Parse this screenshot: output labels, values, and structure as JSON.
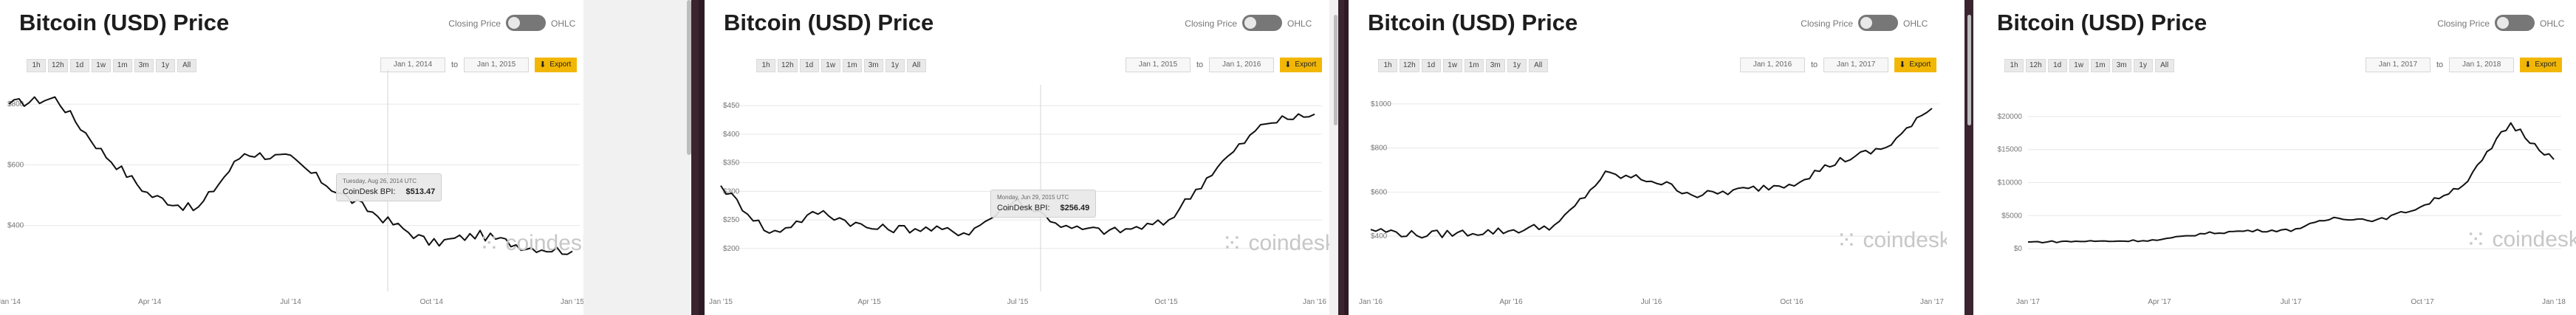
{
  "toolbar": {
    "closing_label": "Closing Price",
    "ohlc_label": "OHLC",
    "to_label": "to",
    "export_label": "Export",
    "ranges": [
      "1h",
      "12h",
      "1d",
      "1w",
      "1m",
      "3m",
      "1y",
      "All"
    ]
  },
  "brand": "coindesk",
  "colors": {
    "line": "#111111",
    "export": "#f2b705",
    "frame": "#2e1a25",
    "grid": "#e7e7e7"
  },
  "panels": [
    {
      "title": "Bitcoin (USD) Price",
      "date_from": "Jan 1, 2014",
      "date_to": "Jan 1, 2015",
      "tooltip": {
        "date": "Tuesday, Aug 26, 2014 UTC",
        "label": "CoinDesk BPI:",
        "value": "$513.47"
      }
    },
    {
      "title": "Bitcoin (USD) Price",
      "date_from": "Jan 1, 2015",
      "date_to": "Jan 1, 2016",
      "tooltip": {
        "date": "Monday, Jun 29, 2015 UTC",
        "label": "CoinDesk BPI:",
        "value": "$256.49"
      }
    },
    {
      "title": "Bitcoin (USD) Price",
      "date_from": "Jan 1, 2016",
      "date_to": "Jan 1, 2017",
      "tooltip": null
    },
    {
      "title": "Bitcoin (USD) Price",
      "date_from": "Jan 1, 2017",
      "date_to": "Jan 1, 2018",
      "tooltip": null
    }
  ],
  "chart_data": [
    {
      "type": "line",
      "series": [
        {
          "x": [
            "Jan '14",
            "Feb '14",
            "Mar '14",
            "Apr '14",
            "May '14",
            "Jun '14",
            "Jul '14",
            "Aug '14",
            "Sep '14",
            "Oct '14",
            "Nov '14",
            "Dec '14",
            "Jan '15"
          ],
          "values": [
            800,
            820,
            640,
            500,
            450,
            640,
            620,
            510,
            420,
            340,
            370,
            330,
            315
          ]
        }
      ],
      "x_ticks": [
        "Jan '14",
        "Apr '14",
        "Jul '14",
        "Oct '14",
        "Jan '15"
      ],
      "y_ticks": [
        "$400",
        "$600",
        "$800"
      ],
      "ylim": [
        280,
        900
      ],
      "grid": true
    },
    {
      "type": "line",
      "series": [
        {
          "x": [
            "Jan '15",
            "Feb '15",
            "Mar '15",
            "Apr '15",
            "May '15",
            "Jun '15",
            "Jul '15",
            "Aug '15",
            "Sep '15",
            "Oct '15",
            "Nov '15",
            "Dec '15",
            "Jan '16"
          ],
          "values": [
            310,
            225,
            265,
            235,
            235,
            228,
            285,
            235,
            230,
            245,
            340,
            420,
            435
          ]
        }
      ],
      "x_ticks": [
        "Jan '15",
        "Apr '15",
        "Jul '15",
        "Oct '15",
        "Jan '16"
      ],
      "y_ticks": [
        "$200",
        "$250",
        "$300",
        "$350",
        "$400",
        "$450"
      ],
      "ylim": [
        170,
        480
      ],
      "grid": true
    },
    {
      "type": "line",
      "series": [
        {
          "x": [
            "Jan '16",
            "Feb '16",
            "Mar '16",
            "Apr '16",
            "May '16",
            "Jun '16",
            "Jul '16",
            "Aug '16",
            "Sep '16",
            "Oct '16",
            "Nov '16",
            "Dec '16",
            "Jan '17"
          ],
          "values": [
            430,
            405,
            415,
            425,
            450,
            680,
            655,
            585,
            610,
            640,
            740,
            800,
            980
          ]
        }
      ],
      "x_ticks": [
        "Jan '16",
        "Apr '16",
        "Jul '16",
        "Oct '16",
        "Jan '17"
      ],
      "y_ticks": [
        "$400",
        "$600",
        "$800",
        "$1000"
      ],
      "ylim": [
        350,
        1070
      ],
      "grid": true
    },
    {
      "type": "line",
      "series": [
        {
          "x": [
            "Jan '17",
            "Feb '17",
            "Mar '17",
            "Apr '17",
            "May '17",
            "Jun '17",
            "Jul '17",
            "Aug '17",
            "Sep '17",
            "Oct '17",
            "Nov '17",
            "Dec '17",
            "Jan '18"
          ],
          "values": [
            1000,
            1100,
            1150,
            1300,
            2300,
            2700,
            2800,
            4700,
            4300,
            6400,
            10000,
            19000,
            13500
          ]
        }
      ],
      "x_ticks": [
        "Jan '17",
        "Apr '17",
        "Jul '17",
        "Oct '17",
        "Jan '18"
      ],
      "y_ticks": [
        "$0",
        "$5000",
        "$10000",
        "$15000",
        "$20000"
      ],
      "ylim": [
        -2000,
        22000
      ],
      "grid": true
    }
  ]
}
